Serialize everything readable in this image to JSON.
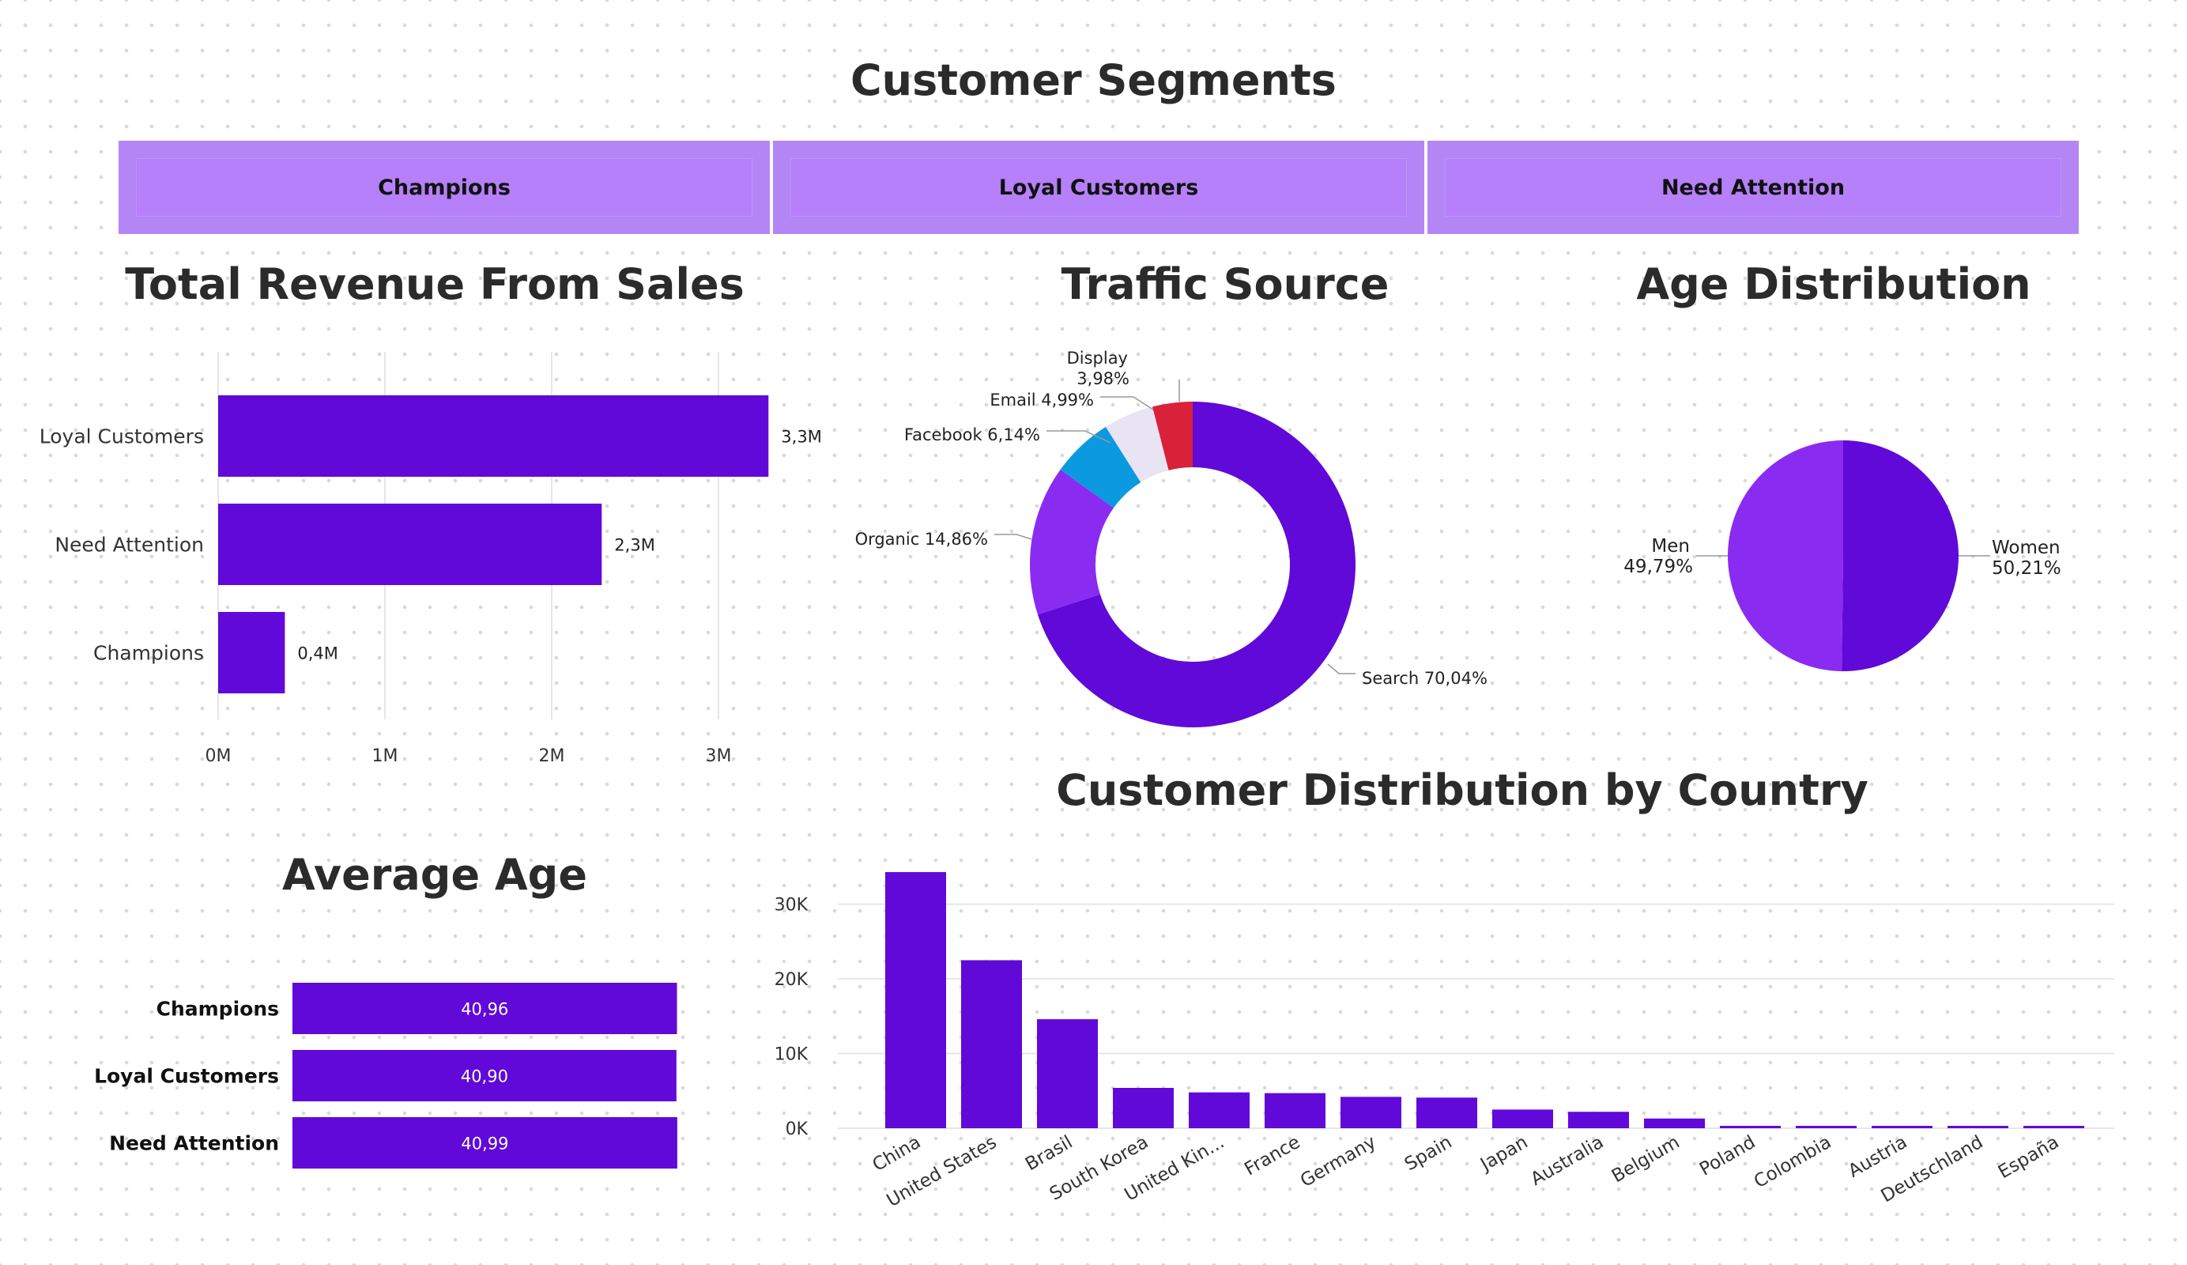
{
  "page": {
    "title": "Customer Segments",
    "accent": "#6009d9",
    "accent_light": "#b486f5"
  },
  "slicer": {
    "items": [
      "Champions",
      "Loyal Customers",
      "Need Attention"
    ]
  },
  "chart_data": [
    {
      "id": "revenue",
      "type": "bar",
      "orientation": "horizontal",
      "title": "Total Revenue From Sales",
      "categories": [
        "Loyal Customers",
        "Need Attention",
        "Champions"
      ],
      "values": [
        3.3,
        2.3,
        0.4
      ],
      "data_labels": [
        "3,3M",
        "2,3M",
        "0,4M"
      ],
      "x_ticks": [
        "0M",
        "1M",
        "2M",
        "3M"
      ],
      "xlim": [
        0,
        3.5
      ],
      "unit": "M",
      "grid": true,
      "color": "#6009d9"
    },
    {
      "id": "traffic",
      "type": "pie",
      "donut": true,
      "title": "Traffic Source",
      "slices": [
        {
          "label": "Search",
          "value": 70.04,
          "text": "Search 70,04%",
          "color": "#6009d9"
        },
        {
          "label": "Organic",
          "value": 14.86,
          "text": "Organic 14,86%",
          "color": "#8a2bf2"
        },
        {
          "label": "Facebook",
          "value": 6.14,
          "text": "Facebook 6,14%",
          "color": "#0b99e0"
        },
        {
          "label": "Email",
          "value": 4.99,
          "text": "Email 4,99%",
          "color": "#e9e4f4"
        },
        {
          "label": "Display",
          "value": 3.98,
          "text": "Display",
          "text2": "3,98%",
          "color": "#d9213a"
        }
      ]
    },
    {
      "id": "age",
      "type": "pie",
      "donut": false,
      "title": "Age Distribution",
      "slices": [
        {
          "label": "Women",
          "value": 50.21,
          "text": "Women",
          "text2": "50,21%",
          "color": "#6009d9"
        },
        {
          "label": "Men",
          "value": 49.79,
          "text": "Men",
          "text2": "49,79%",
          "color": "#8a2bf2"
        }
      ]
    },
    {
      "id": "avgage",
      "type": "bar",
      "orientation": "horizontal",
      "title": "Average Age",
      "categories": [
        "Champions",
        "Loyal Customers",
        "Need Attention"
      ],
      "values": [
        40.96,
        40.9,
        40.99
      ],
      "data_labels": [
        "40,96",
        "40,90",
        "40,99"
      ],
      "color": "#6009d9"
    },
    {
      "id": "country",
      "type": "bar",
      "orientation": "vertical",
      "title": "Customer Distribution by Country",
      "categories": [
        "China",
        "United States",
        "Brasil",
        "South Korea",
        "United Kin...",
        "France",
        "Germany",
        "Spain",
        "Japan",
        "Australia",
        "Belgium",
        "Poland",
        "Colombia",
        "Austria",
        "Deutschland",
        "España"
      ],
      "values": [
        34300,
        22500,
        14600,
        5400,
        4800,
        4700,
        4200,
        4100,
        2500,
        2200,
        1300,
        300,
        300,
        300,
        300,
        300
      ],
      "y_ticks": [
        "0K",
        "10K",
        "20K",
        "30K"
      ],
      "ylim": [
        0,
        36000
      ],
      "grid": true,
      "color": "#6009d9"
    }
  ]
}
